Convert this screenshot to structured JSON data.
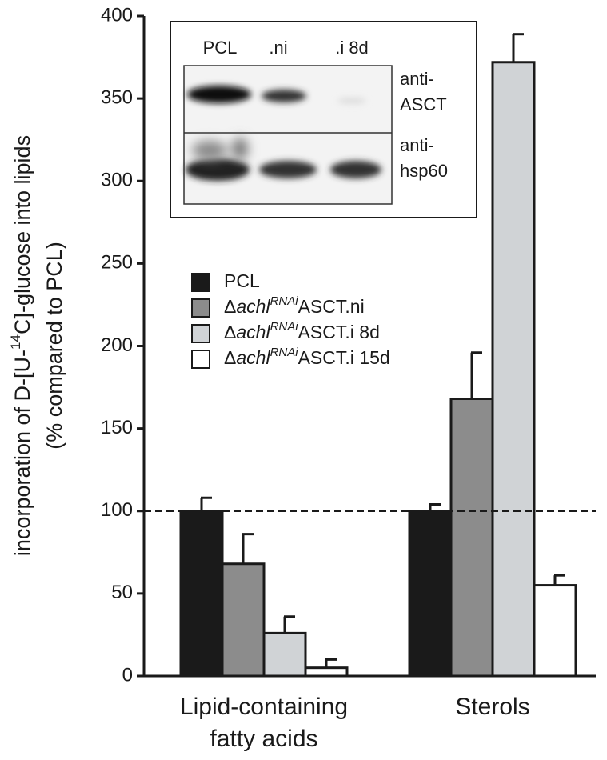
{
  "chart_data": {
    "type": "bar",
    "ylabel": [
      "incorporation of D-[U-",
      "14",
      "C]-glucose into lipids"
    ],
    "ylabel_line2": "(% compared to PCL)",
    "categories": [
      [
        "Lipid-containing",
        "fatty acids"
      ],
      [
        "Sterols"
      ]
    ],
    "series": [
      {
        "name": [
          "PCL"
        ],
        "color": "#1a1a1a",
        "values": [
          100,
          100
        ],
        "errors": [
          8,
          4
        ]
      },
      {
        "name": [
          "Δ",
          "achl",
          "RNAi",
          "ASCT.ni"
        ],
        "color": "#8c8c8c",
        "values": [
          68,
          168
        ],
        "errors": [
          18,
          28
        ]
      },
      {
        "name": [
          "Δ",
          "achl",
          "RNAi",
          "ASCT.i 8d"
        ],
        "color": "#d0d3d6",
        "values": [
          26,
          372
        ],
        "errors": [
          10,
          17
        ]
      },
      {
        "name": [
          "Δ",
          "achl",
          "RNAi",
          "ASCT.i 15d"
        ],
        "color": "#ffffff",
        "values": [
          5,
          55
        ],
        "errors": [
          5,
          6
        ]
      }
    ],
    "ylim": [
      0,
      400
    ],
    "yticks": [
      0,
      50,
      100,
      150,
      200,
      250,
      300,
      350,
      400
    ],
    "reference_line": 100,
    "inset": {
      "lanes": [
        "PCL",
        ".ni",
        ".i 8d"
      ],
      "rows": [
        [
          "anti-",
          "ASCT"
        ],
        [
          "anti-",
          "hsp60"
        ]
      ]
    }
  }
}
